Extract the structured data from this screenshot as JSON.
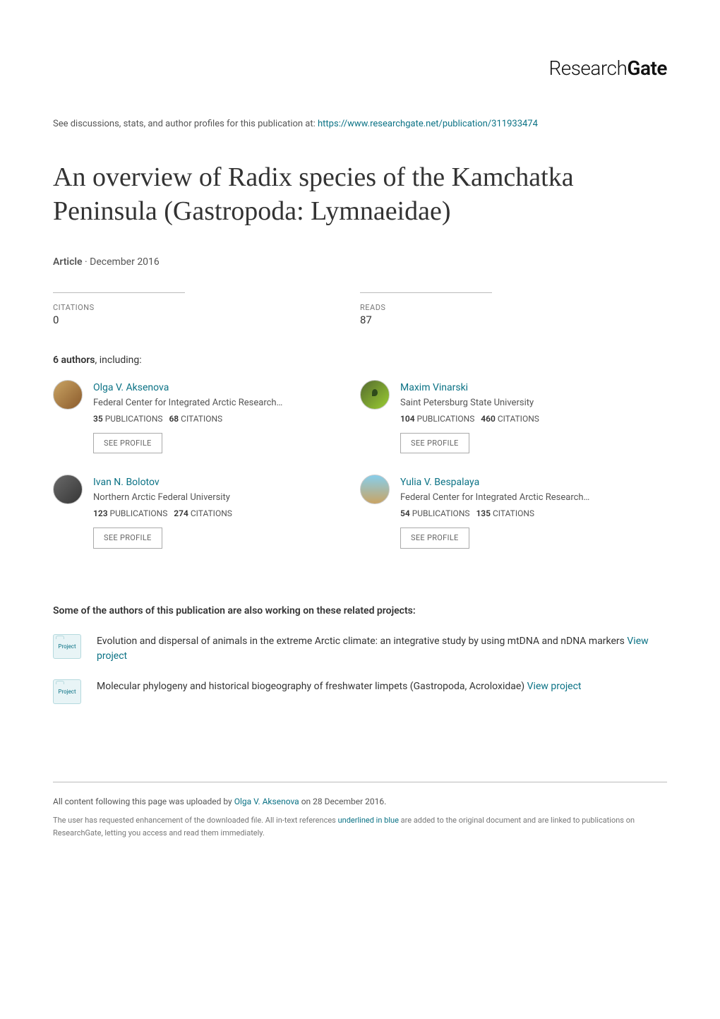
{
  "logo": {
    "plain": "Research",
    "bold": "Gate"
  },
  "discussion": {
    "prefix": "See discussions, stats, and author profiles for this publication at: ",
    "url": "https://www.researchgate.net/publication/311933474"
  },
  "title": "An overview of Radix species of the Kamchatka Peninsula (Gastropoda: Lymnaeidae)",
  "article_meta": {
    "type": "Article",
    "date": "December 2016"
  },
  "stats": {
    "citations_label": "CITATIONS",
    "citations_value": "0",
    "reads_label": "READS",
    "reads_value": "87"
  },
  "authors_heading": {
    "count": "6 authors",
    "suffix": ", including:"
  },
  "see_profile_label": "SEE PROFILE",
  "authors": [
    {
      "name": "Olga V. Aksenova",
      "affiliation": "Federal Center for Integrated Arctic Research…",
      "pubs": "35",
      "cites": "68",
      "avatar_class": "a1"
    },
    {
      "name": "Maxim Vinarski",
      "affiliation": "Saint Petersburg State University",
      "pubs": "104",
      "cites": "460",
      "avatar_class": "a2"
    },
    {
      "name": "Ivan N. Bolotov",
      "affiliation": "Northern Arctic Federal University",
      "pubs": "123",
      "cites": "274",
      "avatar_class": "a3"
    },
    {
      "name": "Yulia V. Bespalaya",
      "affiliation": "Federal Center for Integrated Arctic Research…",
      "pubs": "54",
      "cites": "135",
      "avatar_class": "a4"
    }
  ],
  "pubs_label": "PUBLICATIONS",
  "cites_label": "CITATIONS",
  "related_heading": "Some of the authors of this publication are also working on these related projects:",
  "project_icon_label": "Project",
  "view_project_label": "View project",
  "projects": [
    {
      "text": "Evolution and dispersal of animals in the extreme Arctic climate: an integrative study by using mtDNA and nDNA markers "
    },
    {
      "text": "Molecular phylogeny and historical biogeography of freshwater limpets (Gastropoda, Acroloxidae) "
    }
  ],
  "footer": {
    "upload_prefix": "All content following this page was uploaded by ",
    "uploader": "Olga V. Aksenova",
    "upload_suffix": " on 28 December 2016.",
    "disclaimer_prefix": "The user has requested enhancement of the downloaded file. All in-text references ",
    "disclaimer_link": "underlined in blue",
    "disclaimer_suffix": " are added to the original document and are linked to publications on ResearchGate, letting you access and read them immediately."
  }
}
